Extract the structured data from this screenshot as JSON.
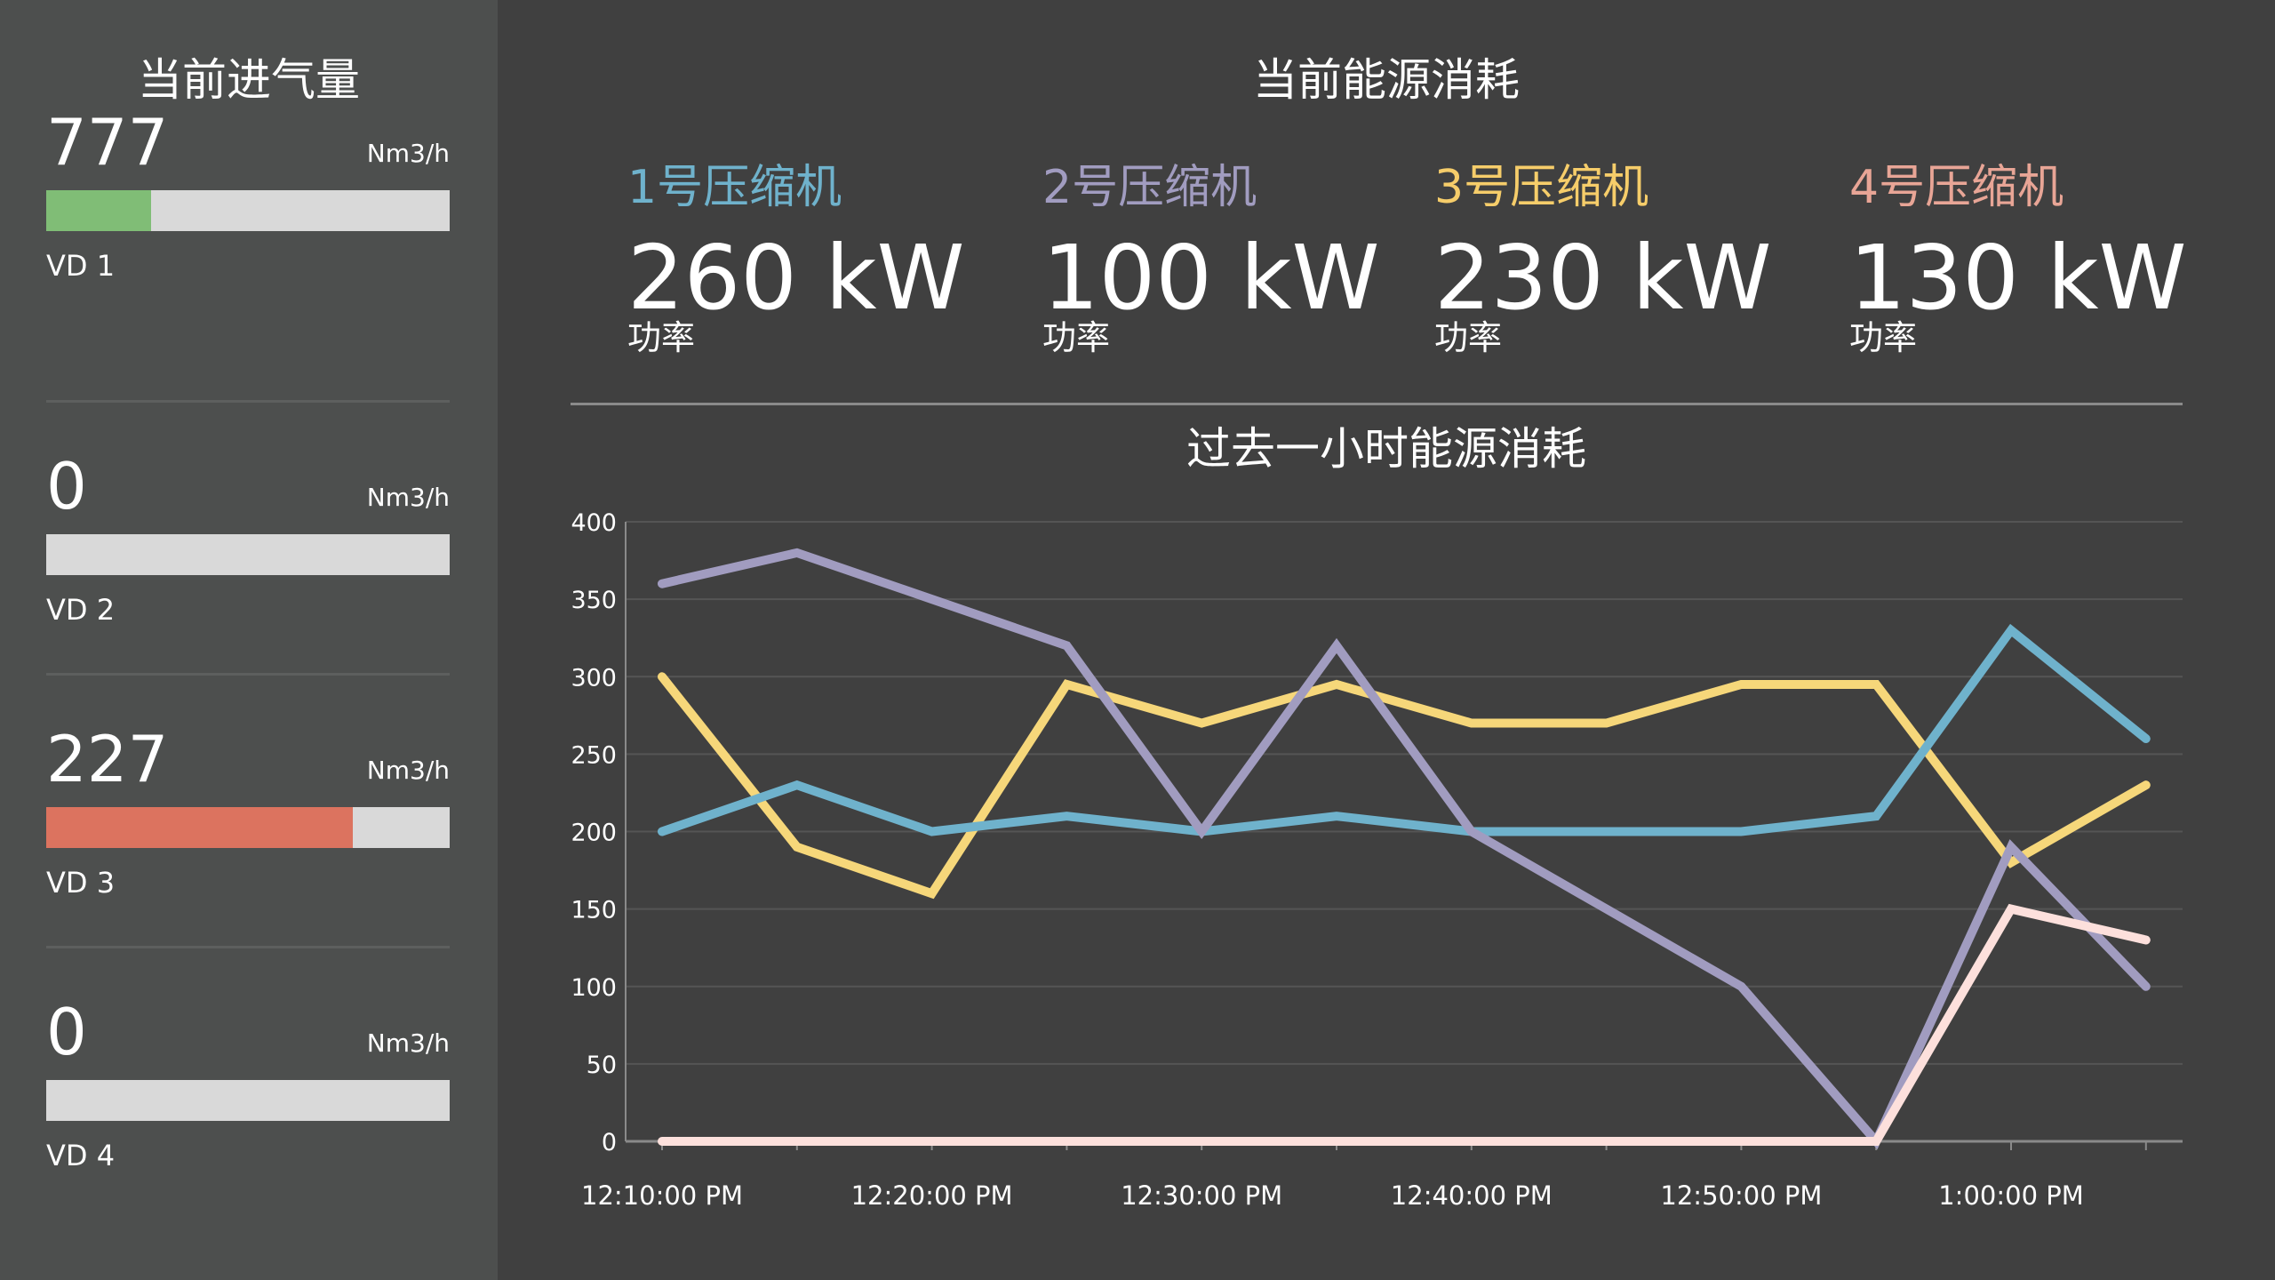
{
  "left_panel": {
    "title": "当前进气量",
    "items": [
      {
        "value": "777",
        "unit": "Nm3/h",
        "label": "VD 1",
        "fill_fraction": 0.26,
        "fill_color": "#80bd76"
      },
      {
        "value": "0",
        "unit": "Nm3/h",
        "label": "VD 2",
        "fill_fraction": 0,
        "fill_color": "#80bd76"
      },
      {
        "value": "227",
        "unit": "Nm3/h",
        "label": "VD 3",
        "fill_fraction": 0.76,
        "fill_color": "#dc735f"
      },
      {
        "value": "0",
        "unit": "Nm3/h",
        "label": "VD 4",
        "fill_fraction": 0,
        "fill_color": "#80bd76"
      }
    ]
  },
  "right_panel": {
    "title": "当前能源消耗",
    "compressors": [
      {
        "name": "1号压缩机",
        "power": "260 kW",
        "sub": "功率",
        "color": "#6fb2cc"
      },
      {
        "name": "2号压缩机",
        "power": "100 kW",
        "sub": "功率",
        "color": "#a19cc0"
      },
      {
        "name": "3号压缩机",
        "power": "230 kW",
        "sub": "功率",
        "color": "#f6cd6a"
      },
      {
        "name": "4号压缩机",
        "power": "130 kW",
        "sub": "功率",
        "color": "#e8a596"
      }
    ]
  },
  "chart_data": {
    "type": "line",
    "title": "过去一小时能源消耗",
    "ylim": [
      0,
      400
    ],
    "y_ticks": [
      0,
      50,
      100,
      150,
      200,
      250,
      300,
      350,
      400
    ],
    "x_tick_labels": [
      "12:10:00 PM",
      "12:20:00 PM",
      "12:30:00 PM",
      "12:40:00 PM",
      "12:50:00 PM",
      "1:00:00 PM"
    ],
    "x": [
      "12:10",
      "12:15",
      "12:20",
      "12:25",
      "12:30",
      "12:35",
      "12:40",
      "12:45",
      "12:50",
      "12:55",
      "13:00",
      "13:05"
    ],
    "grid": true,
    "series": [
      {
        "color": "#f6d77a",
        "values": [
          300,
          190,
          160,
          295,
          270,
          295,
          270,
          270,
          295,
          295,
          180,
          230
        ]
      },
      {
        "color": "#6fb2cc",
        "values": [
          200,
          230,
          200,
          210,
          200,
          210,
          200,
          200,
          200,
          210,
          330,
          260
        ]
      },
      {
        "color": "#a19cc0",
        "values": [
          360,
          380,
          350,
          320,
          200,
          320,
          200,
          150,
          100,
          0,
          190,
          100
        ]
      },
      {
        "color": "#fde0dc",
        "values": [
          0,
          0,
          0,
          0,
          0,
          0,
          0,
          0,
          0,
          0,
          150,
          130
        ]
      }
    ]
  }
}
